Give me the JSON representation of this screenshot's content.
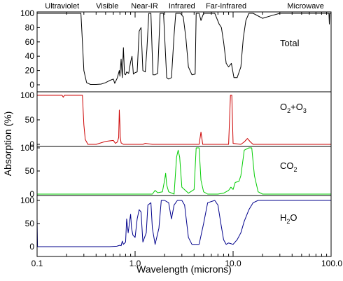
{
  "chart_data": {
    "type": "line",
    "x_scale": "log",
    "xlim": [
      0.1,
      100.0
    ],
    "ylabel": "Absorption (%)",
    "xlabel": "Wavelength (microns)",
    "x_ticks": [
      {
        "value": 0.1,
        "label": "0.1"
      },
      {
        "value": 1.0,
        "label": "1.0"
      },
      {
        "value": 10.0,
        "label": "10.0"
      },
      {
        "value": 100.0,
        "label": "100.0"
      }
    ],
    "region_labels": [
      {
        "text": "Ultraviolet",
        "at": 0.18
      },
      {
        "text": "Visible",
        "at": 0.52
      },
      {
        "text": "Near-IR",
        "at": 1.25
      },
      {
        "text": "Infrared",
        "at": 3.0
      },
      {
        "text": "Far-Infrared",
        "at": 8.5
      },
      {
        "text": "Microwave",
        "at": 55.0
      }
    ],
    "panels": [
      {
        "key": "total",
        "label": "Total",
        "color": "#000000",
        "ylim": [
          0,
          100
        ],
        "yticks": [
          0,
          20,
          40,
          60,
          80,
          100
        ],
        "points": [
          [
            0.1,
            100
          ],
          [
            0.28,
            100
          ],
          [
            0.29,
            60
          ],
          [
            0.3,
            20
          ],
          [
            0.32,
            3
          ],
          [
            0.35,
            0.5
          ],
          [
            0.4,
            0.5
          ],
          [
            0.45,
            1
          ],
          [
            0.5,
            3
          ],
          [
            0.55,
            6
          ],
          [
            0.6,
            8
          ],
          [
            0.62,
            2
          ],
          [
            0.66,
            10
          ],
          [
            0.69,
            20
          ],
          [
            0.7,
            12
          ],
          [
            0.72,
            36
          ],
          [
            0.74,
            10
          ],
          [
            0.76,
            52
          ],
          [
            0.78,
            15
          ],
          [
            0.8,
            14
          ],
          [
            0.82,
            18
          ],
          [
            0.86,
            16
          ],
          [
            0.9,
            32
          ],
          [
            0.93,
            40
          ],
          [
            0.96,
            15
          ],
          [
            1.0,
            17
          ],
          [
            1.05,
            18
          ],
          [
            1.1,
            75
          ],
          [
            1.15,
            80
          ],
          [
            1.2,
            20
          ],
          [
            1.27,
            18
          ],
          [
            1.32,
            50
          ],
          [
            1.38,
            100
          ],
          [
            1.45,
            100
          ],
          [
            1.52,
            14
          ],
          [
            1.6,
            14
          ],
          [
            1.7,
            16
          ],
          [
            1.8,
            100
          ],
          [
            1.95,
            100
          ],
          [
            2.1,
            10
          ],
          [
            2.2,
            8
          ],
          [
            2.35,
            10
          ],
          [
            2.5,
            70
          ],
          [
            2.6,
            100
          ],
          [
            2.9,
            100
          ],
          [
            3.1,
            95
          ],
          [
            3.3,
            65
          ],
          [
            3.5,
            25
          ],
          [
            3.8,
            14
          ],
          [
            4.1,
            15
          ],
          [
            4.2,
            100
          ],
          [
            4.5,
            100
          ],
          [
            4.7,
            90
          ],
          [
            5.0,
            100
          ],
          [
            6.5,
            100
          ],
          [
            7.2,
            85
          ],
          [
            7.6,
            80
          ],
          [
            8.0,
            60
          ],
          [
            8.5,
            30
          ],
          [
            9.0,
            25
          ],
          [
            9.6,
            30
          ],
          [
            10.2,
            10
          ],
          [
            11.0,
            10
          ],
          [
            12.0,
            25
          ],
          [
            12.7,
            65
          ],
          [
            13.5,
            90
          ],
          [
            14.5,
            100
          ],
          [
            16.0,
            100
          ],
          [
            20.0,
            93
          ],
          [
            25.0,
            97
          ],
          [
            30.0,
            100
          ],
          [
            95.0,
            100
          ],
          [
            96.0,
            85
          ],
          [
            97.0,
            100
          ],
          [
            100.0,
            100
          ]
        ]
      },
      {
        "key": "o2o3",
        "label": "O2+O3",
        "label_main": "O",
        "label_sub1": "2",
        "label_plus": "+O",
        "label_sub2": "3",
        "color": "#cc0000",
        "ylim": [
          0,
          100
        ],
        "yticks": [
          0,
          50,
          100
        ],
        "points": [
          [
            0.1,
            100
          ],
          [
            0.18,
            100
          ],
          [
            0.185,
            96
          ],
          [
            0.19,
            100
          ],
          [
            0.29,
            100
          ],
          [
            0.3,
            40
          ],
          [
            0.31,
            10
          ],
          [
            0.33,
            0
          ],
          [
            0.4,
            0
          ],
          [
            0.5,
            6
          ],
          [
            0.6,
            8
          ],
          [
            0.63,
            2
          ],
          [
            0.66,
            5
          ],
          [
            0.68,
            14
          ],
          [
            0.69,
            70
          ],
          [
            0.7,
            40
          ],
          [
            0.705,
            15
          ],
          [
            0.72,
            3
          ],
          [
            0.76,
            0
          ],
          [
            1.2,
            0
          ],
          [
            1.27,
            2
          ],
          [
            1.5,
            0
          ],
          [
            4.5,
            0
          ],
          [
            4.7,
            25
          ],
          [
            4.9,
            0
          ],
          [
            9.0,
            0
          ],
          [
            9.4,
            100
          ],
          [
            9.7,
            100
          ],
          [
            10.0,
            2
          ],
          [
            12.0,
            0
          ],
          [
            13.0,
            5
          ],
          [
            14.0,
            12
          ],
          [
            15.0,
            5
          ],
          [
            16.0,
            0
          ],
          [
            100.0,
            0
          ]
        ]
      },
      {
        "key": "co2",
        "label": "CO2",
        "label_main": "CO",
        "label_sub1": "2",
        "color": "#00cc00",
        "ylim": [
          0,
          100
        ],
        "yticks": [
          0,
          50,
          100
        ],
        "points": [
          [
            0.1,
            0
          ],
          [
            1.5,
            0
          ],
          [
            1.6,
            8
          ],
          [
            1.7,
            3
          ],
          [
            1.9,
            5
          ],
          [
            2.0,
            30
          ],
          [
            2.05,
            45
          ],
          [
            2.1,
            20
          ],
          [
            2.2,
            5
          ],
          [
            2.5,
            0
          ],
          [
            2.65,
            80
          ],
          [
            2.75,
            95
          ],
          [
            2.85,
            80
          ],
          [
            3.0,
            15
          ],
          [
            3.5,
            2
          ],
          [
            4.0,
            10
          ],
          [
            4.2,
            100
          ],
          [
            4.5,
            100
          ],
          [
            4.7,
            30
          ],
          [
            5.0,
            5
          ],
          [
            5.5,
            0
          ],
          [
            7.0,
            0
          ],
          [
            8.0,
            2
          ],
          [
            9.0,
            8
          ],
          [
            9.5,
            15
          ],
          [
            10.0,
            10
          ],
          [
            10.5,
            25
          ],
          [
            11.5,
            28
          ],
          [
            12.0,
            40
          ],
          [
            13.0,
            95
          ],
          [
            14.5,
            100
          ],
          [
            15.5,
            100
          ],
          [
            16.5,
            40
          ],
          [
            18.0,
            5
          ],
          [
            20.0,
            0
          ],
          [
            100.0,
            0
          ]
        ]
      },
      {
        "key": "h2o",
        "label": "H2O",
        "label_main": "H",
        "label_sub1": "2",
        "label_tail": "O",
        "color": "#00008b",
        "ylim": [
          0,
          100
        ],
        "yticks": [
          0,
          50,
          100
        ],
        "points": [
          [
            0.1,
            60
          ],
          [
            0.101,
            0
          ],
          [
            0.3,
            0
          ],
          [
            0.55,
            0
          ],
          [
            0.65,
            1
          ],
          [
            0.7,
            3
          ],
          [
            0.72,
            2
          ],
          [
            0.74,
            12
          ],
          [
            0.76,
            5
          ],
          [
            0.8,
            10
          ],
          [
            0.82,
            60
          ],
          [
            0.85,
            30
          ],
          [
            0.88,
            55
          ],
          [
            0.9,
            70
          ],
          [
            0.92,
            40
          ],
          [
            0.95,
            25
          ],
          [
            1.0,
            20
          ],
          [
            1.05,
            60
          ],
          [
            1.1,
            80
          ],
          [
            1.15,
            75
          ],
          [
            1.2,
            10
          ],
          [
            1.3,
            30
          ],
          [
            1.35,
            90
          ],
          [
            1.45,
            95
          ],
          [
            1.5,
            40
          ],
          [
            1.6,
            5
          ],
          [
            1.75,
            40
          ],
          [
            1.85,
            100
          ],
          [
            2.0,
            100
          ],
          [
            2.2,
            95
          ],
          [
            2.35,
            60
          ],
          [
            2.5,
            90
          ],
          [
            2.7,
            100
          ],
          [
            3.0,
            100
          ],
          [
            3.2,
            90
          ],
          [
            3.5,
            20
          ],
          [
            3.8,
            5
          ],
          [
            4.5,
            5
          ],
          [
            5.0,
            50
          ],
          [
            5.5,
            95
          ],
          [
            6.5,
            100
          ],
          [
            7.0,
            90
          ],
          [
            7.5,
            50
          ],
          [
            8.0,
            15
          ],
          [
            8.5,
            5
          ],
          [
            9.0,
            8
          ],
          [
            10.0,
            5
          ],
          [
            11.0,
            15
          ],
          [
            12.0,
            30
          ],
          [
            13.0,
            55
          ],
          [
            14.5,
            80
          ],
          [
            16.0,
            95
          ],
          [
            18.0,
            100
          ],
          [
            20.0,
            100
          ],
          [
            100.0,
            100
          ]
        ]
      }
    ]
  }
}
